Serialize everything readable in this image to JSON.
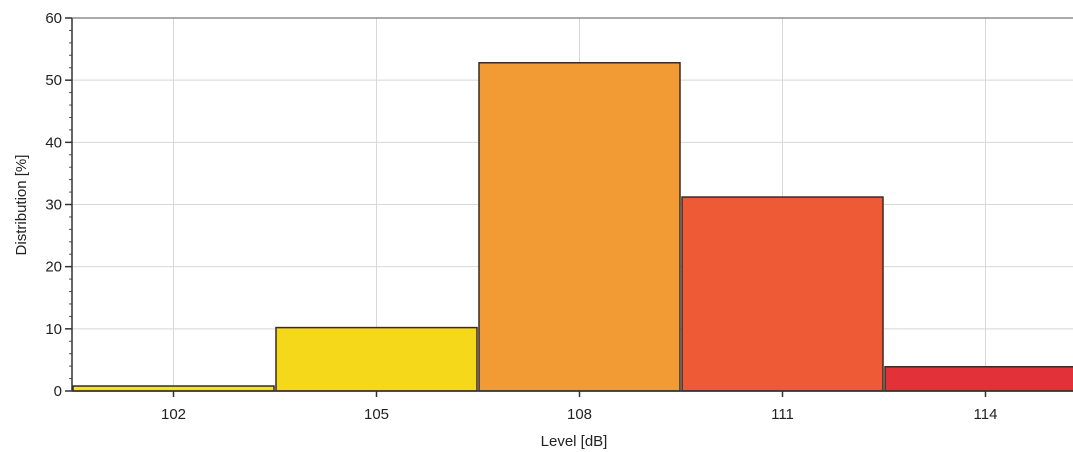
{
  "chart_data": {
    "type": "bar",
    "categories": [
      "102",
      "105",
      "108",
      "111",
      "114"
    ],
    "values": [
      0.8,
      10.2,
      52.8,
      31.2,
      3.9
    ],
    "colors": [
      "#f7e21c",
      "#f5d81a",
      "#f29a34",
      "#ef5a36",
      "#e3313a"
    ],
    "xlabel": "Level [dB]",
    "ylabel": "Distribution [%]",
    "ylim": [
      0,
      60
    ],
    "yticks": [
      0,
      10,
      20,
      30,
      40,
      50,
      60
    ],
    "grid": true,
    "legend": "none"
  }
}
